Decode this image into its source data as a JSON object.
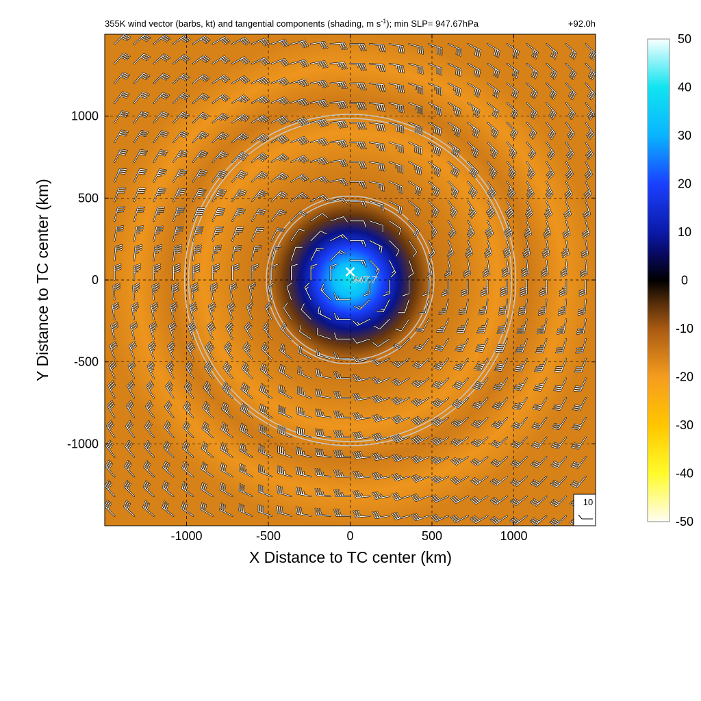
{
  "chart_data": {
    "type": "heatmap",
    "title_main": "355K wind vector (barbs, kt) and tangential components (shading, m s",
    "title_sup": "-1",
    "title_tail": "); min SLP= 947.67hPa",
    "time_label": "+92.0h",
    "xlabel": "X Distance to TC center (km)",
    "ylabel": "Y Distance to TC center (km)",
    "xlim": [
      -1500,
      1500
    ],
    "ylim": [
      -1500,
      1500
    ],
    "xticks": [
      -1000,
      -500,
      0,
      500,
      1000
    ],
    "yticks": [
      -1000,
      -500,
      0,
      500,
      1000
    ],
    "grid": true,
    "center_label": "947.7",
    "reference_barb_label": "10",
    "colorbar": {
      "min": -50,
      "max": 50,
      "ticks": [
        50,
        40,
        30,
        20,
        10,
        0,
        -10,
        -20,
        -30,
        -40,
        -50
      ],
      "stops": [
        {
          "value": -50,
          "color": "#fffdf2"
        },
        {
          "value": -40,
          "color": "#fffb2a"
        },
        {
          "value": -30,
          "color": "#ffc600"
        },
        {
          "value": -20,
          "color": "#f59c1e"
        },
        {
          "value": -10,
          "color": "#a85a12"
        },
        {
          "value": -5,
          "color": "#5a2f0a"
        },
        {
          "value": 0,
          "color": "#000000"
        },
        {
          "value": 5,
          "color": "#08085a"
        },
        {
          "value": 10,
          "color": "#0a1aa8"
        },
        {
          "value": 20,
          "color": "#1a40ff"
        },
        {
          "value": 30,
          "color": "#0ab4ff"
        },
        {
          "value": 40,
          "color": "#10e4f0"
        },
        {
          "value": 50,
          "color": "#f8ffff"
        }
      ]
    },
    "tangential_wind_profile": {
      "radius_km": [
        0,
        100,
        200,
        300,
        400,
        500,
        700,
        900,
        1100,
        1300,
        1500
      ],
      "value_ms": [
        40,
        32,
        20,
        8,
        -6,
        -14,
        -16,
        -19,
        -15,
        -19,
        -16
      ]
    },
    "range_rings_km": [
      500,
      1000
    ],
    "wind_barb_speed_kt": {
      "radius_km": [
        0,
        200,
        400,
        600,
        800,
        1000,
        1200,
        1500
      ],
      "speed_kt": [
        10,
        15,
        10,
        25,
        35,
        40,
        35,
        30
      ]
    }
  },
  "colors": {
    "ring": "#c8c8c8",
    "grid": "#000000",
    "barb": "#ffffff"
  }
}
